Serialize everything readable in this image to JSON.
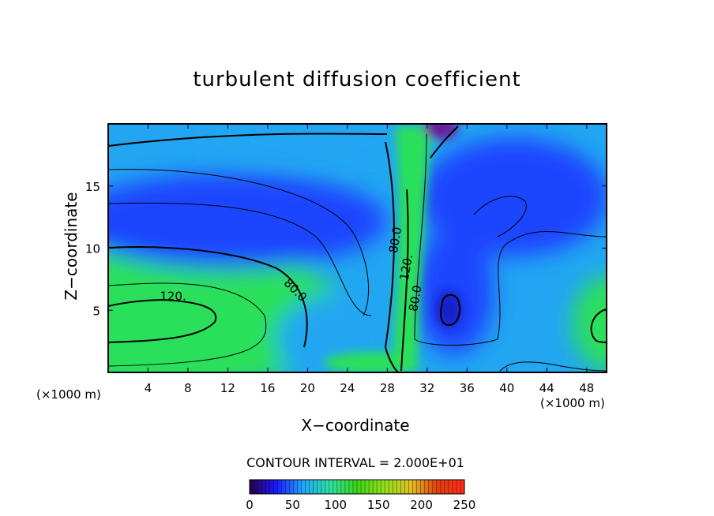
{
  "chart_data": {
    "type": "heatmap",
    "title": "turbulent diffusion coefficient",
    "xlabel": "X−coordinate",
    "ylabel": "Z−coordinate",
    "x_unit": "(×1000 m)",
    "y_unit": "(×1000 m)",
    "xlim": [
      0,
      50
    ],
    "ylim": [
      0,
      20
    ],
    "x_ticks": [
      4,
      8,
      12,
      16,
      20,
      24,
      28,
      32,
      36,
      40,
      44,
      48
    ],
    "y_ticks": [
      5,
      10,
      15
    ],
    "contour_labels": [
      {
        "text": "120.",
        "x": 6.5,
        "z": 5.8
      },
      {
        "text": "80.0",
        "x": 18.5,
        "z": 6.4
      },
      {
        "text": "80.0",
        "x": 29.2,
        "z": 10.6
      },
      {
        "text": "120.",
        "x": 30.3,
        "z": 8.4
      },
      {
        "text": "80.0",
        "x": 31.2,
        "z": 5.9
      }
    ],
    "contour_interval_text": "CONTOUR INTERVAL = 2.000E+01",
    "colorbar": {
      "min": 0,
      "max": 250,
      "ticks": [
        0,
        50,
        100,
        150,
        200,
        250
      ],
      "colors": [
        "#2a004a",
        "#1a1aff",
        "#1ea8ff",
        "#2fe0a0",
        "#3cd61a",
        "#8fe01a",
        "#e0c020",
        "#e04010",
        "#ff2a1a"
      ]
    },
    "field_colors": {
      "low": "#1a44ff",
      "mid": "#22a6f2",
      "high": "#2be05a",
      "min_patch": "#6a1a9a"
    }
  }
}
